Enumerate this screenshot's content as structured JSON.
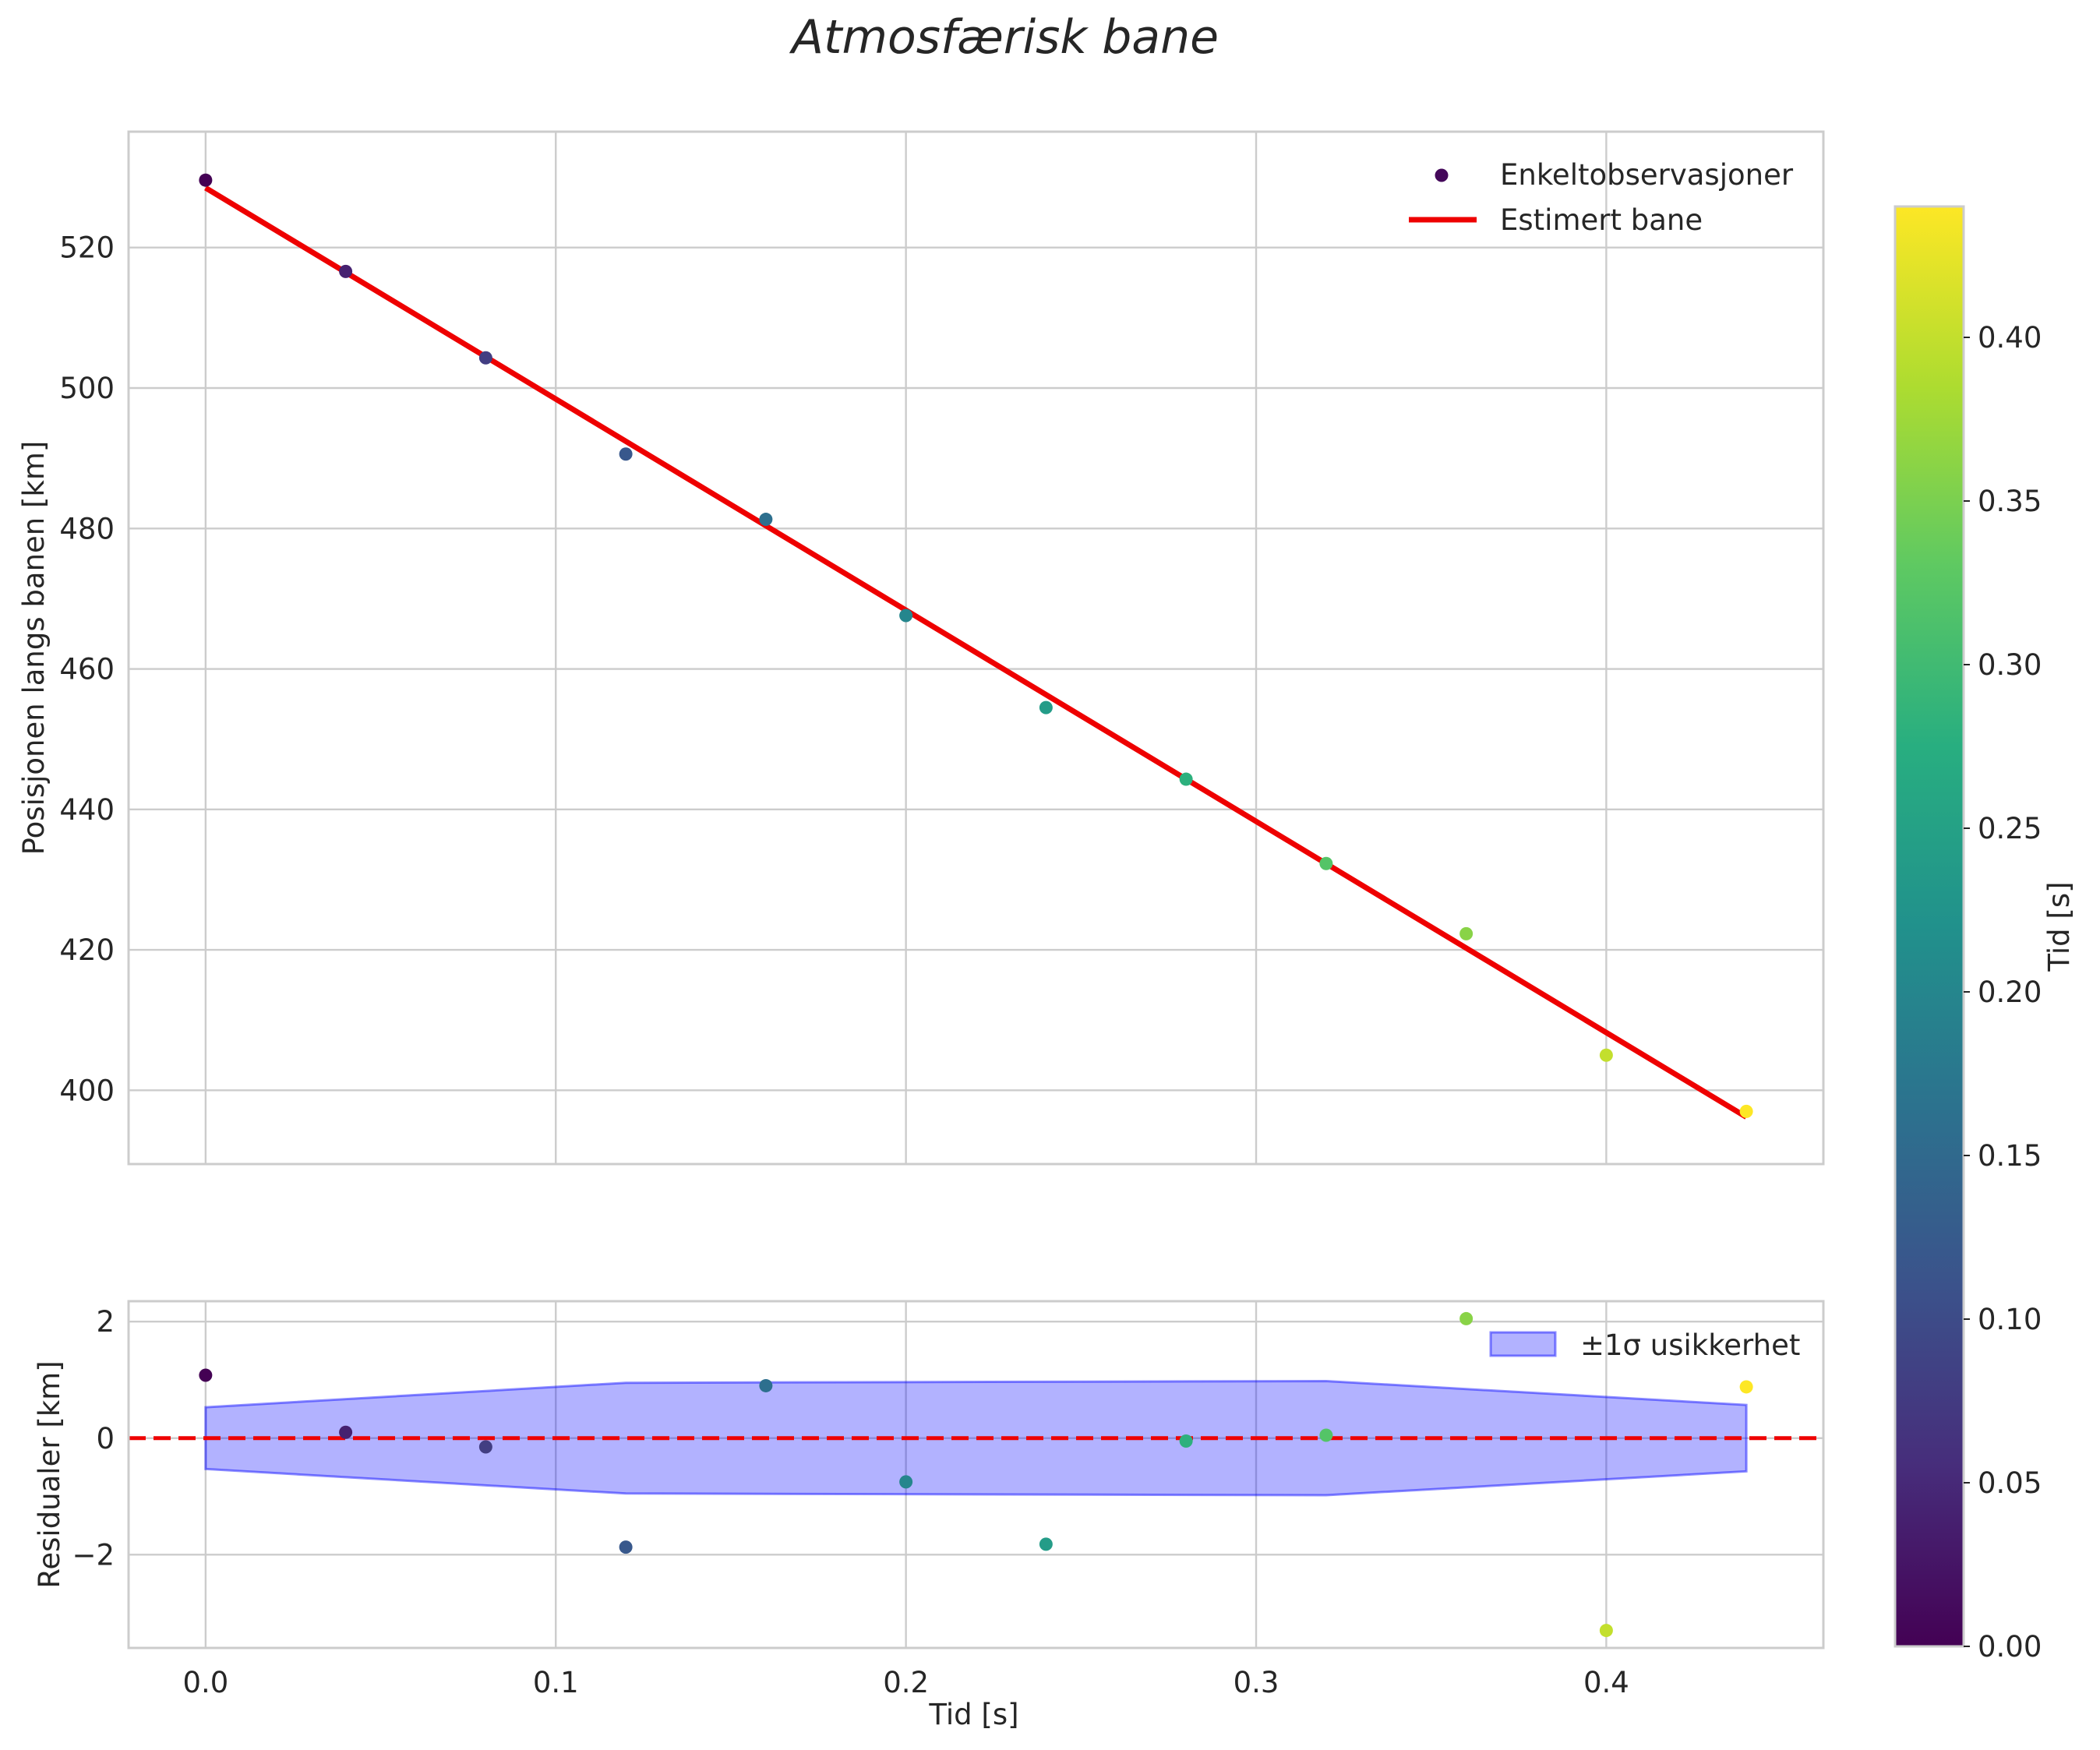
{
  "figure": {
    "title": "Atmosfærisk bane"
  },
  "chart_data": [
    {
      "type": "scatter",
      "panel": "main",
      "title": "Atmosfærisk bane",
      "xlabel": "Tid [s]",
      "ylabel": "Posisjonen langs banen [km]",
      "xlim": [
        -0.022,
        0.462
      ],
      "ylim": [
        389.5,
        536.5
      ],
      "x_ticks": [
        0.0,
        0.1,
        0.2,
        0.3,
        0.4
      ],
      "y_ticks": [
        400,
        420,
        440,
        460,
        480,
        500,
        520
      ],
      "x_tick_labels": [
        "0.0",
        "0.1",
        "0.2",
        "0.3",
        "0.4"
      ],
      "y_tick_labels": [
        "400",
        "420",
        "440",
        "460",
        "480",
        "500",
        "520"
      ],
      "grid": true,
      "legend": {
        "position": "top-right",
        "entries": [
          "Enkeltobservasjoner",
          "Estimert bane"
        ]
      },
      "series": [
        {
          "name": "Enkeltobservasjoner",
          "kind": "scatter",
          "colormap": "viridis",
          "x": [
            0.0,
            0.04,
            0.08,
            0.12,
            0.16,
            0.2,
            0.24,
            0.28,
            0.32,
            0.36,
            0.4,
            0.44
          ],
          "y": [
            529.6,
            516.6,
            504.3,
            490.6,
            481.3,
            467.6,
            454.5,
            444.3,
            432.3,
            422.3,
            405.0,
            397.0
          ]
        },
        {
          "name": "Estimert bane",
          "kind": "line",
          "color": "#ee0000",
          "x": [
            0.0,
            0.44
          ],
          "y": [
            528.5,
            396.2
          ]
        }
      ]
    },
    {
      "type": "scatter",
      "panel": "residuals",
      "xlabel": "Tid [s]",
      "ylabel": "Residualer [km]",
      "xlim": [
        -0.022,
        0.462
      ],
      "ylim": [
        -3.6,
        2.35
      ],
      "x_ticks": [
        0.0,
        0.1,
        0.2,
        0.3,
        0.4
      ],
      "y_ticks": [
        -2,
        0,
        2
      ],
      "x_tick_labels": [
        "0.0",
        "0.1",
        "0.2",
        "0.3",
        "0.4"
      ],
      "y_tick_labels": [
        "−2",
        "0",
        "2"
      ],
      "grid": true,
      "legend": {
        "position": "top-right",
        "entries": [
          "±1σ usikkerhet"
        ]
      },
      "series": [
        {
          "name": "Residualer",
          "kind": "scatter",
          "colormap": "viridis",
          "x": [
            0.0,
            0.04,
            0.08,
            0.12,
            0.16,
            0.2,
            0.24,
            0.28,
            0.32,
            0.36,
            0.4,
            0.44
          ],
          "y": [
            1.08,
            0.1,
            -0.15,
            -1.87,
            0.9,
            -0.75,
            -1.82,
            -0.05,
            0.05,
            2.05,
            -3.3,
            0.88
          ]
        },
        {
          "name": "±1σ usikkerhet",
          "kind": "band",
          "color": "#0000ff",
          "x": [
            0.0,
            0.12,
            0.32,
            0.44
          ],
          "upper": [
            0.53,
            0.95,
            0.98,
            0.57
          ],
          "lower": [
            -0.53,
            -0.95,
            -0.98,
            -0.57
          ]
        },
        {
          "name": "Null",
          "kind": "hline",
          "color": "#ee0000",
          "y": 0
        }
      ]
    },
    {
      "type": "colorbar",
      "colormap": "viridis",
      "label": "Tid [s]",
      "range": [
        0.0,
        0.44
      ],
      "ticks": [
        0.0,
        0.05,
        0.1,
        0.15,
        0.2,
        0.25,
        0.3,
        0.35,
        0.4
      ],
      "tick_labels": [
        "0.00",
        "0.05",
        "0.10",
        "0.15",
        "0.20",
        "0.25",
        "0.30",
        "0.35",
        "0.40"
      ]
    }
  ]
}
